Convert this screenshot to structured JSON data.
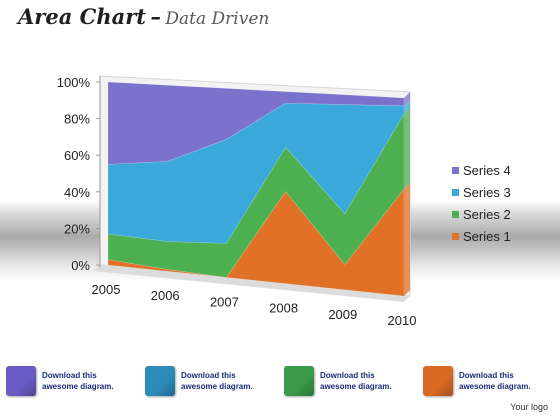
{
  "title": {
    "main": "Area Chart",
    "dash": "–",
    "sub": "Data Driven"
  },
  "chart_data": {
    "type": "area",
    "stacking": "percent",
    "view": "3d",
    "categories": [
      "2005",
      "2006",
      "2007",
      "2008",
      "2009",
      "2010"
    ],
    "series": [
      {
        "name": "Series 1",
        "color": "#E07126",
        "values": [
          0.03,
          0.01,
          0.0,
          0.48,
          0.13,
          0.54
        ]
      },
      {
        "name": "Series 2",
        "color": "#4CAF50",
        "values": [
          0.14,
          0.15,
          0.18,
          0.23,
          0.26,
          0.38
        ]
      },
      {
        "name": "Series 3",
        "color": "#3AA8D8",
        "values": [
          0.38,
          0.43,
          0.55,
          0.23,
          0.56,
          0.04
        ]
      },
      {
        "name": "Series 4",
        "color": "#7B72CC",
        "values": [
          0.45,
          0.41,
          0.27,
          0.06,
          0.05,
          0.04
        ]
      }
    ],
    "y_ticks": [
      "0%",
      "20%",
      "40%",
      "60%",
      "80%",
      "100%"
    ],
    "ylim": [
      0,
      1
    ],
    "legend_position": "right",
    "grid": false
  },
  "footer": {
    "items": [
      {
        "text_line1": "Download this",
        "text_line2": "awesome diagram.",
        "color": "#6A5BC4"
      },
      {
        "text_line1": "Download this",
        "text_line2": "awesome diagram.",
        "color": "#2C8BB8"
      },
      {
        "text_line1": "Download this",
        "text_line2": "awesome diagram.",
        "color": "#3A9A4A"
      },
      {
        "text_line1": "Download this",
        "text_line2": "awesome diagram.",
        "color": "#D96A24"
      }
    ],
    "logo": "Your logo"
  }
}
